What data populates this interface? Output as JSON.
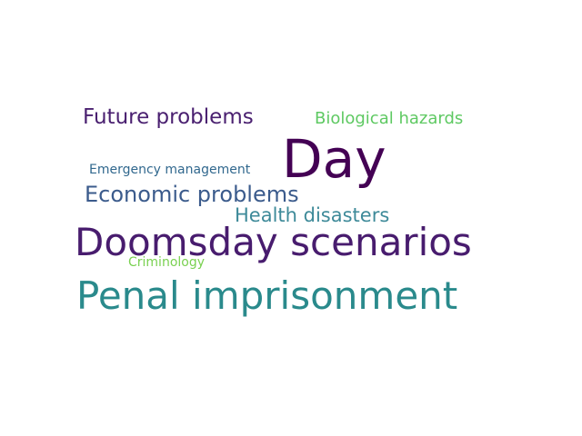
{
  "words": [
    {
      "text": "Day",
      "color": "#440154"
    },
    {
      "text": "Doomsday scenarios",
      "color": "#481c6e"
    },
    {
      "text": "Penal imprisonment",
      "color": "#2a8a8c"
    },
    {
      "text": "Future problems",
      "color": "#4a2070"
    },
    {
      "text": "Economic problems",
      "color": "#3b5b8c"
    },
    {
      "text": "Health disasters",
      "color": "#3e8a99"
    },
    {
      "text": "Biological hazards",
      "color": "#5ec962"
    },
    {
      "text": "Emergency management",
      "color": "#31688e"
    },
    {
      "text": "Criminology",
      "color": "#7ad151"
    }
  ]
}
